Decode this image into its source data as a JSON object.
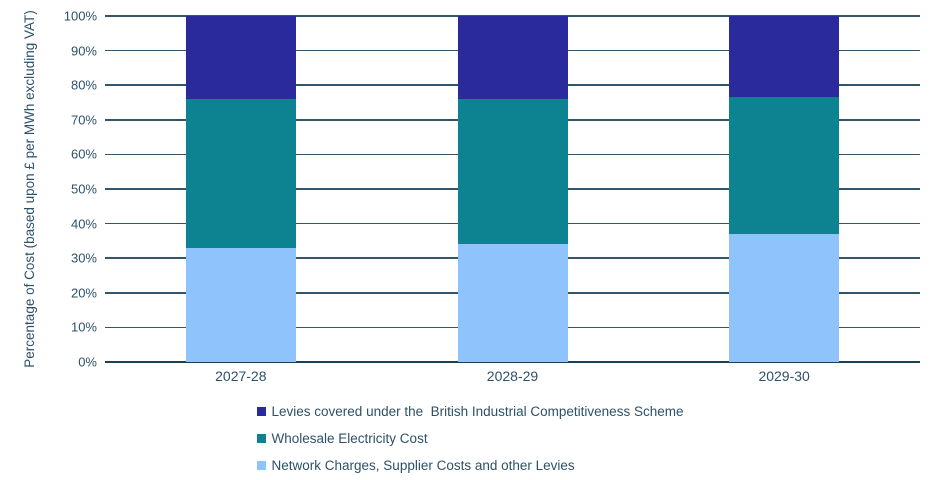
{
  "chart_data": {
    "type": "bar",
    "stacked": true,
    "title": "",
    "xlabel": "",
    "ylabel": "Percentage of Cost (based upon £ per MWh excluding VAT)",
    "ylim": [
      0,
      100
    ],
    "ytick_step": 10,
    "ytick_labels": [
      "0%",
      "10%",
      "20%",
      "30%",
      "40%",
      "50%",
      "60%",
      "70%",
      "80%",
      "90%",
      "100%"
    ],
    "grid": true,
    "categories": [
      "2027-28",
      "2028-29",
      "2029-30"
    ],
    "series": [
      {
        "name": "Network Charges, Supplier Costs and other Levies",
        "values": [
          33,
          34,
          37
        ],
        "color": "#8fc3fc"
      },
      {
        "name": "Wholesale Electricity Cost",
        "values": [
          43,
          42,
          39.5
        ],
        "color": "#0d8290"
      },
      {
        "name": "Levies covered under the  British Industrial Competitiveness Scheme",
        "values": [
          24,
          24,
          23.5
        ],
        "color": "#2b2a9d"
      }
    ],
    "legend": {
      "position": "bottom",
      "order": [
        2,
        1,
        0
      ]
    },
    "colors": {
      "grid": "#33566b",
      "axis": "#1f3f52",
      "text": "#2d5168",
      "background": "#ffffff"
    }
  }
}
